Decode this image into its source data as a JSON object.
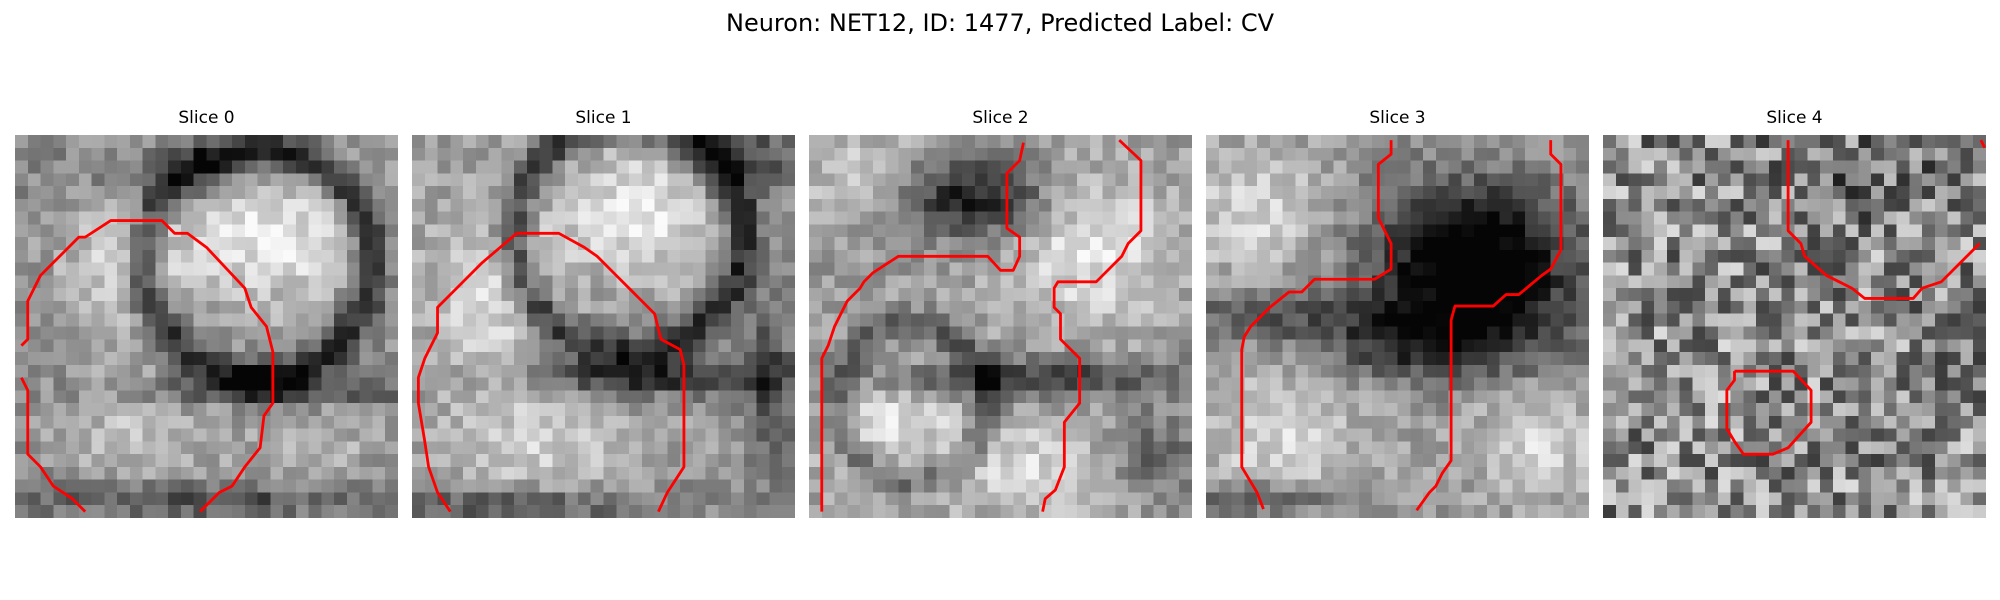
{
  "figure": {
    "title": "Neuron: NET12, ID: 1477, Predicted Label: CV"
  },
  "colors": {
    "contour": "#ff0000",
    "background": "#ffffff"
  },
  "panels": [
    {
      "title": "Slice 0"
    },
    {
      "title": "Slice 1"
    },
    {
      "title": "Slice 2"
    },
    {
      "title": "Slice 3"
    },
    {
      "title": "Slice 4"
    }
  ]
}
